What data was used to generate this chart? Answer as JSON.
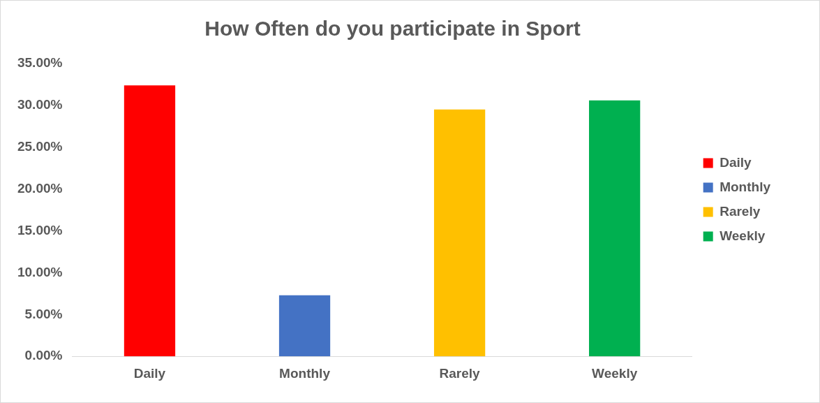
{
  "chart_data": {
    "type": "bar",
    "title": "How Often do you participate in Sport",
    "categories": [
      "Daily",
      "Monthly",
      "Rarely",
      "Weekly"
    ],
    "series": [
      {
        "name": "Daily",
        "color": "#ff0000",
        "values": [
          32.4,
          null,
          null,
          null
        ]
      },
      {
        "name": "Monthly",
        "color": "#4472c4",
        "values": [
          null,
          7.3,
          null,
          null
        ]
      },
      {
        "name": "Rarely",
        "color": "#ffc000",
        "values": [
          null,
          null,
          29.5,
          null
        ]
      },
      {
        "name": "Weekly",
        "color": "#00b050",
        "values": [
          null,
          null,
          null,
          30.6
        ]
      }
    ],
    "ylim": [
      0,
      35
    ],
    "yticks": [
      {
        "value": 0,
        "label": "0.00%"
      },
      {
        "value": 5,
        "label": "5.00%"
      },
      {
        "value": 10,
        "label": "10.00%"
      },
      {
        "value": 15,
        "label": "15.00%"
      },
      {
        "value": 20,
        "label": "20.00%"
      },
      {
        "value": 25,
        "label": "25.00%"
      },
      {
        "value": 30,
        "label": "30.00%"
      },
      {
        "value": 35,
        "label": "35.00%"
      }
    ],
    "grid": false,
    "legend": "right"
  }
}
